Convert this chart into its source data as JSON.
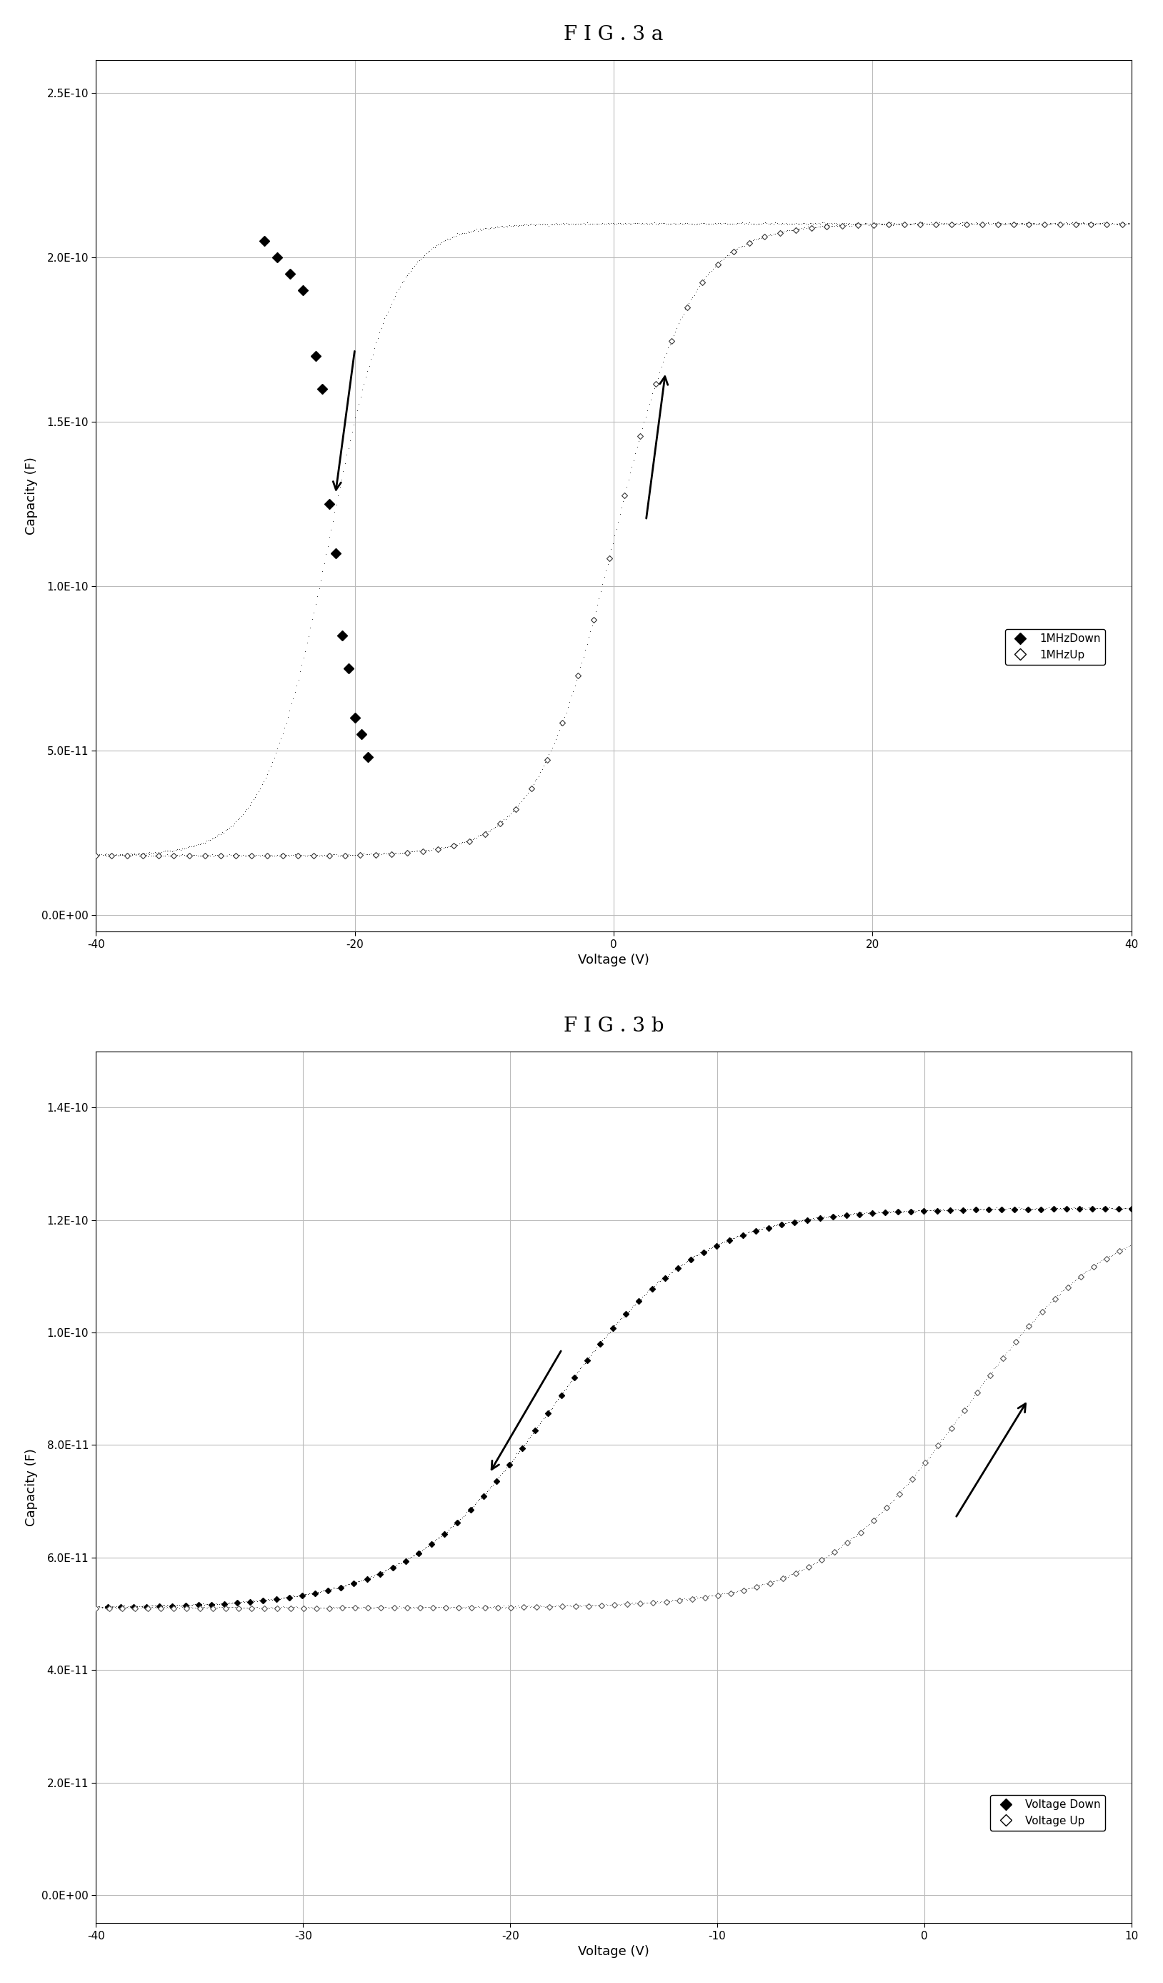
{
  "fig3a": {
    "title": "F I G . 3 a",
    "xlabel": "Voltage (V)",
    "ylabel": "Capacity (F)",
    "xlim": [
      -40,
      40
    ],
    "ylim": [
      -5e-12,
      2.6e-10
    ],
    "yticks": [
      0,
      5e-11,
      1e-10,
      1.5e-10,
      2e-10,
      2.5e-10
    ],
    "ytick_labels": [
      "0.0E+00",
      "5.0E-11",
      "1.0E-10",
      "1.5E-10",
      "2.0E-10",
      "2.5E-10"
    ],
    "xticks": [
      -40,
      -20,
      0,
      20,
      40
    ],
    "legend_down": "1MHzDown",
    "legend_up": "1MHzUp"
  },
  "fig3b": {
    "title": "F I G . 3 b",
    "xlabel": "Voltage (V)",
    "ylabel": "Capacity (F)",
    "xlim": [
      -40,
      10
    ],
    "ylim": [
      -5e-12,
      1.5e-10
    ],
    "yticks": [
      0,
      2e-11,
      4e-11,
      6e-11,
      8e-11,
      1e-10,
      1.2e-10,
      1.4e-10
    ],
    "ytick_labels": [
      "0.0E+00",
      "2.0E-11",
      "4.0E-11",
      "6.0E-11",
      "8.0E-11",
      "1.0E-10",
      "1.2E-10",
      "1.4E-10"
    ],
    "xticks": [
      -40,
      -30,
      -20,
      -10,
      0,
      10
    ],
    "legend_down": "Voltage Down",
    "legend_up": "Voltage Up"
  },
  "background_color": "#ffffff",
  "grid_color": "#bbbbbb",
  "text_color": "#000000"
}
